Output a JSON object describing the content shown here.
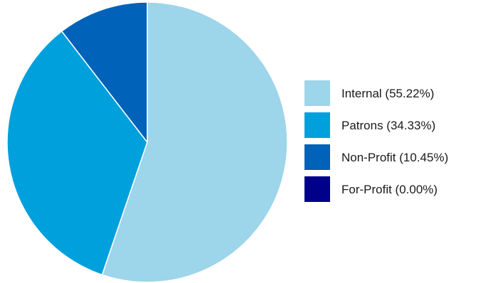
{
  "chart_data": {
    "type": "pie",
    "slices": [
      {
        "label": "Internal",
        "value": 55.22,
        "display": "Internal (55.22%)",
        "color": "#9dd5ea"
      },
      {
        "label": "Patrons",
        "value": 34.33,
        "display": "Patrons (34.33%)",
        "color": "#00a0dd"
      },
      {
        "label": "Non-Profit",
        "value": 10.45,
        "display": "Non-Profit (10.45%)",
        "color": "#0062b9"
      },
      {
        "label": "For-Profit",
        "value": 0.0,
        "display": "For-Profit (0.00%)",
        "color": "#00008b"
      }
    ],
    "start_angle": "12 o'clock",
    "direction": "clockwise",
    "slice_border_color": "#ffffff",
    "legend_position": "right"
  }
}
